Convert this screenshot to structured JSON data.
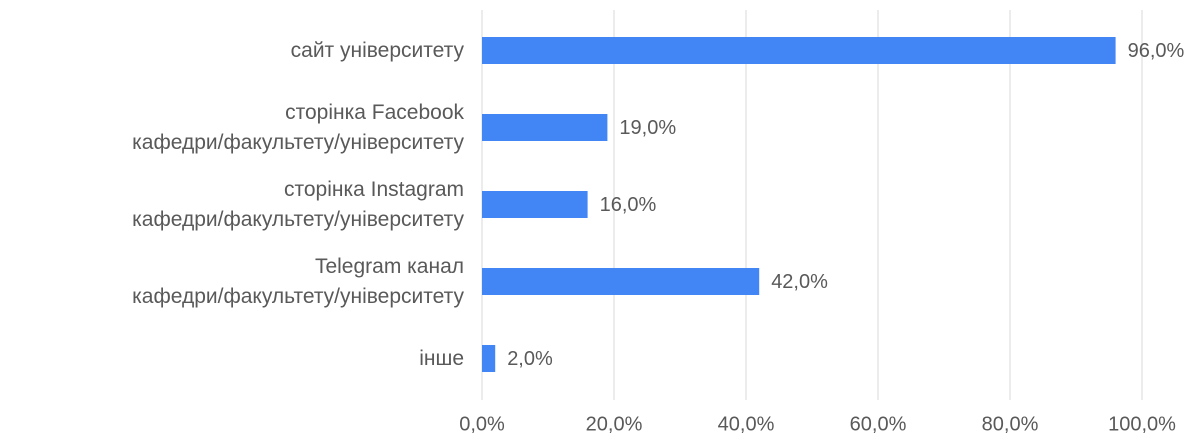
{
  "chart_data": {
    "type": "bar",
    "orientation": "horizontal",
    "categories": [
      "сайт університету",
      "сторінка Facebook\nкафедри/факультету/університету",
      "сторінка Instagram\nкафедри/факультету/університету",
      "Telegram канал\nкафедри/факультету/університету",
      "інше"
    ],
    "values": [
      96,
      19,
      16,
      42,
      2
    ],
    "value_labels": [
      "96,0%",
      "19,0%",
      "16,0%",
      "42,0%",
      "2,0%"
    ],
    "color": "#4285f4",
    "xlim": [
      0,
      100
    ],
    "xticks": [
      {
        "value": 0,
        "label": "0,0%"
      },
      {
        "value": 20,
        "label": "20,0%"
      },
      {
        "value": 40,
        "label": "40,0%"
      },
      {
        "value": 60,
        "label": "60,0%"
      },
      {
        "value": 80,
        "label": "80,0%"
      },
      {
        "value": 100,
        "label": "100,0%"
      }
    ],
    "grid": true
  }
}
